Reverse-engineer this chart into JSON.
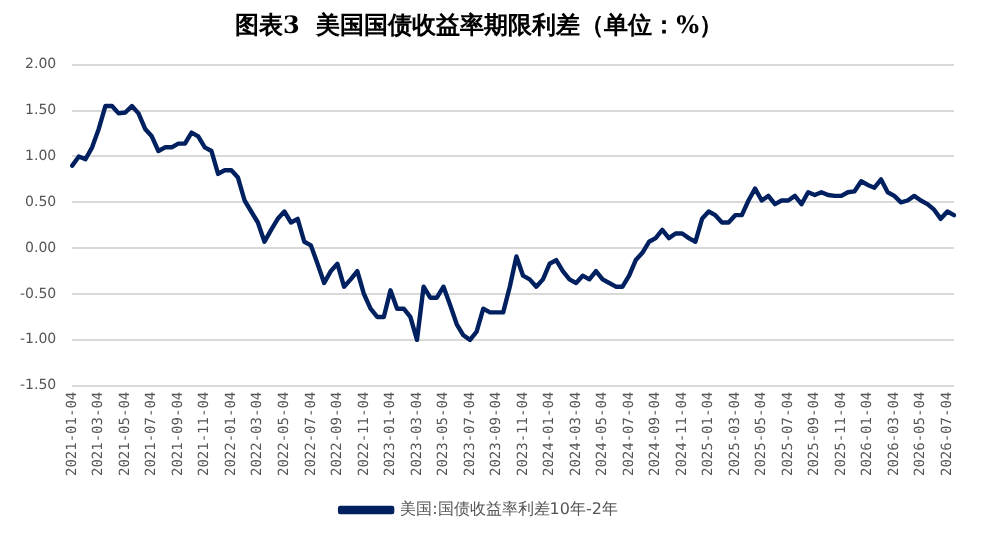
{
  "chart_data": {
    "type": "line",
    "title": "图表3  美国国债收益率期限利差（单位：%）",
    "categories": [
      "2021-01-04",
      null,
      null,
      null,
      "2021-03-04",
      null,
      null,
      null,
      "2021-05-04",
      null,
      null,
      null,
      "2021-07-04",
      null,
      null,
      null,
      "2021-09-04",
      null,
      null,
      null,
      "2021-11-04",
      null,
      null,
      null,
      "2022-01-04",
      null,
      null,
      null,
      "2022-03-04",
      null,
      null,
      null,
      "2022-05-04",
      null,
      null,
      null,
      "2022-07-04",
      null,
      null,
      null,
      "2022-09-04",
      null,
      null,
      null,
      "2022-11-04",
      null,
      null,
      null,
      "2023-01-04",
      null,
      null,
      null,
      "2023-03-04",
      null,
      null,
      null,
      "2023-05-04",
      null,
      null,
      null,
      "2023-07-04",
      null,
      null,
      null,
      "2023-09-04",
      null,
      null,
      null,
      "2023-11-04",
      null,
      null,
      null,
      "2024-01-04",
      null,
      null,
      null,
      "2024-03-04",
      null,
      null,
      null,
      "2024-05-04",
      null,
      null,
      null,
      "2024-07-04",
      null,
      null,
      null,
      "2024-09-04",
      null,
      null,
      null,
      "2024-11-04",
      null,
      null,
      null,
      "2025-01-04",
      null,
      null,
      null,
      "2025-03-04",
      null,
      null,
      null,
      "2025-05-04",
      null,
      null,
      null,
      "2025-07-04",
      null,
      null,
      null,
      "2025-09-04",
      null,
      null,
      null,
      "2025-11-04",
      null,
      null,
      null,
      "2026-01-04",
      null,
      null,
      null,
      "2026-03-04",
      null,
      null,
      null,
      "2026-05-04",
      null,
      null,
      null,
      "2026-07-04",
      null
    ],
    "series": [
      {
        "name": "美国:国债收益率利差10年-2年",
        "color": "#002060",
        "values": [
          0.9,
          1.0,
          0.97,
          1.1,
          1.3,
          1.55,
          1.55,
          1.47,
          1.48,
          1.55,
          1.47,
          1.3,
          1.22,
          1.06,
          1.1,
          1.1,
          1.14,
          1.14,
          1.26,
          1.22,
          1.1,
          1.06,
          0.81,
          0.85,
          0.85,
          0.77,
          0.52,
          0.4,
          0.28,
          0.07,
          0.2,
          0.32,
          0.4,
          0.28,
          0.32,
          0.07,
          0.03,
          -0.17,
          -0.38,
          -0.25,
          -0.17,
          -0.42,
          -0.34,
          -0.25,
          -0.5,
          -0.66,
          -0.75,
          -0.75,
          -0.46,
          -0.66,
          -0.66,
          -0.75,
          -1.0,
          -0.42,
          -0.54,
          -0.54,
          -0.42,
          -0.62,
          -0.83,
          -0.95,
          -1.0,
          -0.91,
          -0.66,
          -0.7,
          -0.7,
          -0.7,
          -0.42,
          -0.09,
          -0.3,
          -0.34,
          -0.42,
          -0.34,
          -0.17,
          -0.13,
          -0.25,
          -0.34,
          -0.38,
          -0.3,
          -0.34,
          -0.25,
          -0.34,
          -0.38,
          -0.42,
          -0.42,
          -0.3,
          -0.13,
          -0.05,
          0.07,
          0.11,
          0.2,
          0.11,
          0.16,
          0.16,
          0.11,
          0.07,
          0.32,
          0.4,
          0.36,
          0.28,
          0.28,
          0.36,
          0.36,
          0.52,
          0.65,
          0.52,
          0.57,
          0.48,
          0.52,
          0.52,
          0.57,
          0.48,
          0.61,
          0.58,
          0.61,
          0.58,
          0.57,
          0.57,
          0.61,
          0.62,
          0.73,
          0.69,
          0.66,
          0.75,
          0.61,
          0.57,
          0.5,
          0.52,
          0.57,
          0.52,
          0.48,
          0.42,
          0.32,
          0.4,
          0.36
        ]
      }
    ],
    "ylim": [
      -1.5,
      2
    ],
    "yticks": [
      {
        "value": -1.5,
        "label": "-1.50"
      },
      {
        "value": -1,
        "label": "-1.00"
      },
      {
        "value": -0.5,
        "label": "-0.50"
      },
      {
        "value": 0,
        "label": "0.00"
      },
      {
        "value": 0.5,
        "label": "0.50"
      },
      {
        "value": 1,
        "label": "1.00"
      },
      {
        "value": 1.5,
        "label": "1.50"
      },
      {
        "value": 2,
        "label": "2.00"
      }
    ],
    "grid": "y",
    "legend": "bottom",
    "marker": "none",
    "line_style": "solid"
  }
}
